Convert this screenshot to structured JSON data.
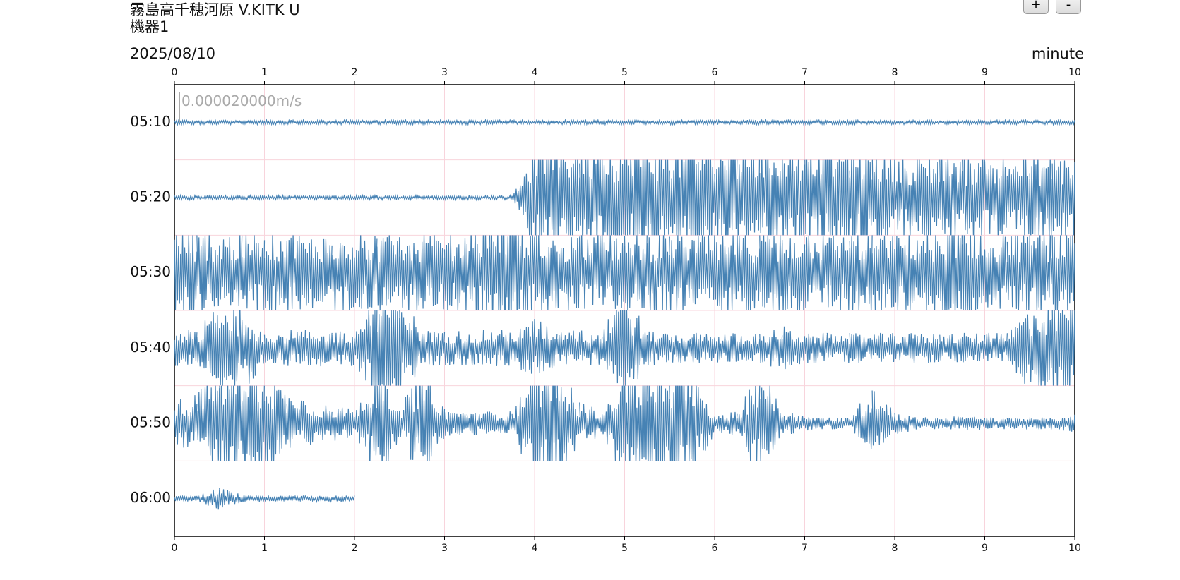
{
  "header": {
    "station": "霧島高千穂河原 V.KITK U",
    "device": "機器1",
    "buttons": [
      "+",
      "-"
    ]
  },
  "chart_data": {
    "type": "line",
    "title": "2025/08/10",
    "x_label": "minute",
    "xlim": [
      0,
      10
    ],
    "xticks": [
      0,
      1,
      2,
      3,
      4,
      5,
      6,
      7,
      8,
      9,
      10
    ],
    "grid": true,
    "scale": {
      "value": 2e-05,
      "label": "0.000020000m/s"
    },
    "x": [
      0,
      0.25,
      0.5,
      0.75,
      1,
      1.25,
      1.5,
      1.75,
      2,
      2.25,
      2.5,
      2.75,
      3,
      3.25,
      3.5,
      3.75,
      4,
      4.25,
      4.5,
      4.75,
      5,
      5.25,
      5.5,
      5.75,
      6,
      6.25,
      6.5,
      6.75,
      7,
      7.25,
      7.5,
      7.75,
      8,
      8.25,
      8.5,
      8.75,
      9,
      9.25,
      9.5,
      9.75,
      10
    ],
    "series": [
      {
        "name": "05:10",
        "color": "#4682b4",
        "values": [
          1.5e-06,
          1.5e-06,
          1.5e-06,
          1.5e-06,
          1.5e-06,
          1.5e-06,
          1.5e-06,
          1.5e-06,
          1.5e-06,
          1.5e-06,
          1.5e-06,
          1.5e-06,
          1.5e-06,
          1.5e-06,
          1.5e-06,
          1.5e-06,
          1.5e-06,
          1.5e-06,
          1.5e-06,
          1.5e-06,
          1.5e-06,
          1.5e-06,
          1.5e-06,
          1.5e-06,
          1.5e-06,
          1.5e-06,
          1.5e-06,
          1.5e-06,
          1.5e-06,
          1.5e-06,
          1.5e-06,
          1.5e-06,
          1.5e-06,
          1.5e-06,
          1.5e-06,
          1.5e-06,
          1.5e-06,
          1.5e-06,
          1.5e-06,
          1.5e-06,
          1.5e-06
        ]
      },
      {
        "name": "05:20",
        "color": "#4682b4",
        "values": [
          1.5e-06,
          1.5e-06,
          1.5e-06,
          1.5e-06,
          1.5e-06,
          1.5e-06,
          1.5e-06,
          1.5e-06,
          1.5e-06,
          1.5e-06,
          1.5e-06,
          1.5e-06,
          1.5e-06,
          1.5e-06,
          1.5e-06,
          1.5e-06,
          4e-05,
          4e-05,
          4e-05,
          4e-05,
          4e-05,
          4e-05,
          4e-05,
          4e-05,
          4e-05,
          4e-05,
          4e-05,
          4e-05,
          4e-05,
          4e-05,
          4e-05,
          4e-05,
          3e-05,
          3e-05,
          3e-05,
          3e-05,
          3e-05,
          3e-05,
          3e-05,
          3e-05,
          3e-05
        ]
      },
      {
        "name": "05:30",
        "color": "#4682b4",
        "values": [
          3e-05,
          2.8e-05,
          2.8e-05,
          2.5e-05,
          2.8e-05,
          2.8e-05,
          2.5e-05,
          2.8e-05,
          2.8e-05,
          2.5e-05,
          2.8e-05,
          2.8e-05,
          2.5e-05,
          2.8e-05,
          4e-05,
          4e-05,
          2.8e-05,
          2.5e-05,
          2.8e-05,
          2.8e-05,
          2.5e-05,
          2.8e-05,
          2.8e-05,
          2.5e-05,
          2.8e-05,
          2.8e-05,
          2.5e-05,
          2.8e-05,
          2.8e-05,
          2.5e-05,
          2.8e-05,
          2.8e-05,
          2.5e-05,
          2.8e-05,
          2.8e-05,
          4e-05,
          2.8e-05,
          2.5e-05,
          2.8e-05,
          2.8e-05,
          2.8e-05
        ]
      },
      {
        "name": "05:40",
        "color": "#4682b4",
        "values": [
          1.2e-05,
          1.2e-05,
          3e-05,
          3e-05,
          1.2e-05,
          1.2e-05,
          1.2e-05,
          1.2e-05,
          1.2e-05,
          4e-05,
          4e-05,
          1.2e-05,
          1.2e-05,
          1.2e-05,
          1.2e-05,
          1.2e-05,
          2e-05,
          1.2e-05,
          1.2e-05,
          1.2e-05,
          4e-05,
          1.2e-05,
          1e-05,
          1e-05,
          1e-05,
          1e-05,
          1e-05,
          1.5e-05,
          1e-05,
          1e-05,
          1e-05,
          1e-05,
          1e-05,
          1e-05,
          1e-05,
          1e-05,
          1e-05,
          1e-05,
          3e-05,
          3e-05,
          4e-05
        ]
      },
      {
        "name": "05:50",
        "color": "#4682b4",
        "values": [
          1.5e-05,
          2e-05,
          4e-05,
          4e-05,
          4e-05,
          2e-05,
          1.5e-05,
          1.2e-05,
          1e-05,
          4e-05,
          1e-05,
          4e-05,
          1e-05,
          8e-06,
          8e-06,
          8e-06,
          4e-05,
          4e-05,
          1.5e-05,
          8e-06,
          4e-05,
          4e-05,
          4e-05,
          4e-05,
          6e-06,
          8e-06,
          4e-05,
          1e-05,
          5e-06,
          4e-06,
          4e-06,
          2.5e-05,
          8e-06,
          4e-06,
          4e-06,
          5e-06,
          4e-06,
          4e-06,
          4e-06,
          4e-06,
          6e-06
        ]
      },
      {
        "name": "06:00",
        "color": "#4682b4",
        "values": [
          2e-06,
          2e-06,
          8e-06,
          2.5e-06,
          2e-06,
          2e-06,
          2e-06,
          2e-06,
          2e-06,
          null,
          null,
          null,
          null,
          null,
          null,
          null,
          null,
          null,
          null,
          null,
          null,
          null,
          null,
          null,
          null,
          null,
          null,
          null,
          null,
          null,
          null,
          null,
          null,
          null,
          null,
          null,
          null,
          null,
          null,
          null,
          null
        ]
      }
    ]
  }
}
